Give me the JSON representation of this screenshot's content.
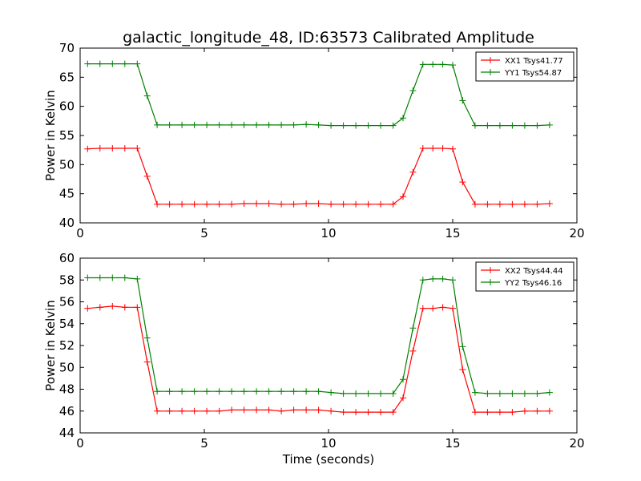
{
  "figure": {
    "title": "galactic_longitude_48, ID:63573 Calibrated Amplitude"
  },
  "chart_data": [
    {
      "type": "line",
      "title": "galactic_longitude_48, ID:63573 Calibrated Amplitude",
      "xlabel": "",
      "ylabel": "Power in Kelvin",
      "xlim": [
        0,
        20
      ],
      "ylim": [
        40,
        70
      ],
      "x_ticks": [
        "0",
        "5",
        "10",
        "15",
        "20"
      ],
      "y_ticks": [
        "40",
        "45",
        "50",
        "55",
        "60",
        "65",
        "70"
      ],
      "grid": false,
      "legend_position": "top-right",
      "x": [
        0.3,
        0.8,
        1.3,
        1.8,
        2.3,
        2.7,
        3.1,
        3.6,
        4.1,
        4.6,
        5.1,
        5.6,
        6.1,
        6.6,
        7.1,
        7.6,
        8.1,
        8.6,
        9.1,
        9.6,
        10.1,
        10.6,
        11.1,
        11.6,
        12.1,
        12.6,
        13.0,
        13.4,
        13.8,
        14.2,
        14.6,
        15.0,
        15.4,
        15.9,
        16.4,
        16.9,
        17.4,
        17.9,
        18.4,
        18.9
      ],
      "series": [
        {
          "name": "XX1 Tsys41.77",
          "color": "#ff0000",
          "values": [
            52.7,
            52.8,
            52.8,
            52.8,
            52.8,
            48.0,
            43.2,
            43.2,
            43.2,
            43.2,
            43.2,
            43.2,
            43.2,
            43.3,
            43.3,
            43.3,
            43.2,
            43.2,
            43.3,
            43.3,
            43.2,
            43.2,
            43.2,
            43.2,
            43.2,
            43.2,
            44.5,
            48.7,
            52.8,
            52.8,
            52.8,
            52.7,
            47.0,
            43.2,
            43.2,
            43.2,
            43.2,
            43.2,
            43.2,
            43.3
          ]
        },
        {
          "name": "YY1 Tsys54.87",
          "color": "#008000",
          "values": [
            67.3,
            67.3,
            67.3,
            67.3,
            67.3,
            61.8,
            56.8,
            56.8,
            56.8,
            56.8,
            56.8,
            56.8,
            56.8,
            56.8,
            56.8,
            56.8,
            56.8,
            56.8,
            56.9,
            56.8,
            56.7,
            56.7,
            56.7,
            56.7,
            56.7,
            56.7,
            58.0,
            62.7,
            67.2,
            67.2,
            67.2,
            67.1,
            61.0,
            56.7,
            56.7,
            56.7,
            56.7,
            56.7,
            56.7,
            56.8
          ]
        }
      ]
    },
    {
      "type": "line",
      "title": "",
      "xlabel": "Time (seconds)",
      "ylabel": "Power in Kelvin",
      "xlim": [
        0,
        20
      ],
      "ylim": [
        44,
        60
      ],
      "x_ticks": [
        "0",
        "5",
        "10",
        "15",
        "20"
      ],
      "y_ticks": [
        "44",
        "46",
        "48",
        "50",
        "52",
        "54",
        "56",
        "58",
        "60"
      ],
      "grid": false,
      "legend_position": "top-right",
      "x": [
        0.3,
        0.8,
        1.3,
        1.8,
        2.3,
        2.7,
        3.1,
        3.6,
        4.1,
        4.6,
        5.1,
        5.6,
        6.1,
        6.6,
        7.1,
        7.6,
        8.1,
        8.6,
        9.1,
        9.6,
        10.1,
        10.6,
        11.1,
        11.6,
        12.1,
        12.6,
        13.0,
        13.4,
        13.8,
        14.2,
        14.6,
        15.0,
        15.4,
        15.9,
        16.4,
        16.9,
        17.4,
        17.9,
        18.4,
        18.9
      ],
      "series": [
        {
          "name": "XX2 Tsys44.44",
          "color": "#ff0000",
          "values": [
            55.4,
            55.5,
            55.6,
            55.5,
            55.5,
            50.5,
            46.0,
            46.0,
            46.0,
            46.0,
            46.0,
            46.0,
            46.1,
            46.1,
            46.1,
            46.1,
            46.0,
            46.1,
            46.1,
            46.1,
            46.0,
            45.9,
            45.9,
            45.9,
            45.9,
            45.9,
            47.2,
            51.5,
            55.4,
            55.4,
            55.5,
            55.4,
            49.8,
            45.9,
            45.9,
            45.9,
            45.9,
            46.0,
            46.0,
            46.0
          ]
        },
        {
          "name": "YY2 Tsys46.16",
          "color": "#008000",
          "values": [
            58.2,
            58.2,
            58.2,
            58.2,
            58.1,
            52.7,
            47.8,
            47.8,
            47.8,
            47.8,
            47.8,
            47.8,
            47.8,
            47.8,
            47.8,
            47.8,
            47.8,
            47.8,
            47.8,
            47.8,
            47.7,
            47.6,
            47.6,
            47.6,
            47.6,
            47.6,
            48.9,
            53.6,
            58.0,
            58.1,
            58.1,
            58.0,
            51.9,
            47.7,
            47.6,
            47.6,
            47.6,
            47.6,
            47.6,
            47.7
          ]
        }
      ]
    }
  ]
}
